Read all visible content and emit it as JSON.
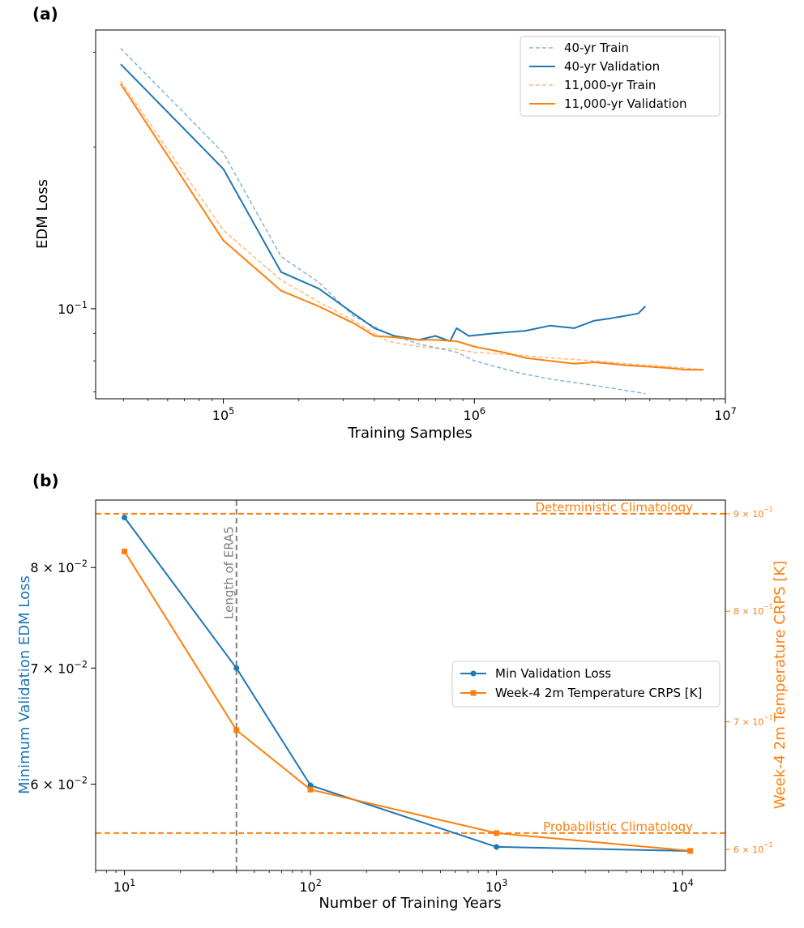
{
  "chart_data": [
    {
      "panel": "(a)",
      "type": "line",
      "xscale": "log",
      "yscale": "log",
      "xlabel": "Training Samples",
      "ylabel": "EDM Loss",
      "xlim": [
        31000,
        10000000
      ],
      "ylim": [
        0.068,
        0.33
      ],
      "x_ticks": [
        {
          "value": 100000,
          "base": "10",
          "exp": "5"
        },
        {
          "value": 1000000,
          "base": "10",
          "exp": "6"
        },
        {
          "value": 10000000,
          "base": "10",
          "exp": "7"
        }
      ],
      "y_ticks": [
        {
          "value": 0.1,
          "base": "10",
          "exp": "−1"
        }
      ],
      "legend_position": "top-right",
      "series": [
        {
          "name": "40-yr Train",
          "color": "#1f77b4",
          "style": "dashed",
          "opacity": 0.55,
          "x": [
            39000,
            100000,
            170000,
            240000,
            330000,
            450000,
            600000,
            850000,
            1000000,
            1500000,
            2000000,
            3000000,
            4000000,
            4800000
          ],
          "y": [
            0.305,
            0.195,
            0.125,
            0.112,
            0.097,
            0.09,
            0.086,
            0.083,
            0.08,
            0.076,
            0.074,
            0.072,
            0.0705,
            0.0695
          ]
        },
        {
          "name": "40-yr Validation",
          "color": "#1f77b4",
          "style": "solid",
          "opacity": 1,
          "x": [
            39000,
            100000,
            170000,
            240000,
            330000,
            400000,
            480000,
            600000,
            700000,
            800000,
            850000,
            950000,
            1200000,
            1600000,
            2000000,
            2500000,
            3000000,
            3500000,
            4000000,
            4500000,
            4800000
          ],
          "y": [
            0.285,
            0.182,
            0.117,
            0.109,
            0.098,
            0.092,
            0.089,
            0.0875,
            0.089,
            0.087,
            0.092,
            0.089,
            0.09,
            0.091,
            0.093,
            0.092,
            0.095,
            0.096,
            0.097,
            0.098,
            0.101
          ]
        },
        {
          "name": "11,000-yr Train",
          "color": "#ff7f0e",
          "style": "dashed",
          "opacity": 0.55,
          "x": [
            39000,
            100000,
            170000,
            240000,
            330000,
            450000,
            600000,
            850000,
            1000000,
            1500000,
            2000000,
            3000000,
            4000000,
            5000000,
            6000000,
            7000000,
            8200000
          ],
          "y": [
            0.265,
            0.14,
            0.113,
            0.103,
            0.095,
            0.087,
            0.085,
            0.084,
            0.083,
            0.082,
            0.081,
            0.08,
            0.079,
            0.0785,
            0.078,
            0.0775,
            0.077
          ]
        },
        {
          "name": "11,000-yr Validation",
          "color": "#ff7f0e",
          "style": "solid",
          "opacity": 1,
          "x": [
            39000,
            100000,
            170000,
            240000,
            330000,
            400000,
            480000,
            600000,
            700000,
            850000,
            1000000,
            1300000,
            1600000,
            2000000,
            2500000,
            3000000,
            3500000,
            4000000,
            5000000,
            6000000,
            7000000,
            8200000
          ],
          "y": [
            0.262,
            0.134,
            0.108,
            0.101,
            0.094,
            0.089,
            0.0885,
            0.0875,
            0.0875,
            0.087,
            0.085,
            0.083,
            0.081,
            0.08,
            0.079,
            0.0795,
            0.079,
            0.0785,
            0.078,
            0.0775,
            0.077,
            0.077
          ]
        }
      ]
    },
    {
      "panel": "(b)",
      "type": "line",
      "xscale": "log",
      "yscale": "log",
      "xlabel": "Number of Training Years",
      "ylabel": "Minimum Validation EDM Loss",
      "ylabel_right": "Week-4 2m Temperature CRPS [K]",
      "xlim": [
        7,
        17000
      ],
      "ylim": [
        0.0535,
        0.0875
      ],
      "ylim_right": [
        0.585,
        0.915
      ],
      "x_ticks": [
        {
          "value": 10,
          "base": "10",
          "exp": "1"
        },
        {
          "value": 100,
          "base": "10",
          "exp": "2"
        },
        {
          "value": 1000,
          "base": "10",
          "exp": "3"
        },
        {
          "value": 10000,
          "base": "10",
          "exp": "4"
        }
      ],
      "y_ticks": [
        {
          "value": 0.06,
          "label": "6 × 10",
          "exp": "−2"
        },
        {
          "value": 0.07,
          "label": "7 × 10",
          "exp": "−2"
        },
        {
          "value": 0.08,
          "label": "8 × 10",
          "exp": "−2"
        }
      ],
      "y_ticks_right": [
        {
          "value": 0.6,
          "label": "6 × 10",
          "exp": "−1"
        },
        {
          "value": 0.7,
          "label": "7 × 10",
          "exp": "−1"
        },
        {
          "value": 0.8,
          "label": "8 × 10",
          "exp": "−1"
        },
        {
          "value": 0.9,
          "label": "9 × 10",
          "exp": "−1"
        }
      ],
      "legend_position": "center-right",
      "series": [
        {
          "name": "Min Validation Loss",
          "color": "#1f77b4",
          "marker": "circle",
          "axis": "left",
          "x": [
            10,
            40,
            100,
            1000,
            11000
          ],
          "y": [
            0.0855,
            0.07,
            0.0599,
            0.0552,
            0.0549
          ]
        },
        {
          "name": "Week-4 2m Temperature CRPS [K]",
          "color": "#ff7f0e",
          "marker": "square",
          "axis": "right",
          "x": [
            10,
            40,
            100,
            1000,
            11000
          ],
          "y": [
            0.86,
            0.693,
            0.645,
            0.612,
            0.599
          ]
        }
      ],
      "hlines": [
        {
          "label": "Deterministic Climatology",
          "value": 0.9,
          "axis": "right",
          "color": "#ff7f0e"
        },
        {
          "label": "Probabilistic Climatology",
          "value": 0.612,
          "axis": "right",
          "color": "#ff7f0e"
        }
      ],
      "vline": {
        "label": "Length of ERA5",
        "value": 40,
        "color": "#7f7f7f"
      }
    }
  ]
}
